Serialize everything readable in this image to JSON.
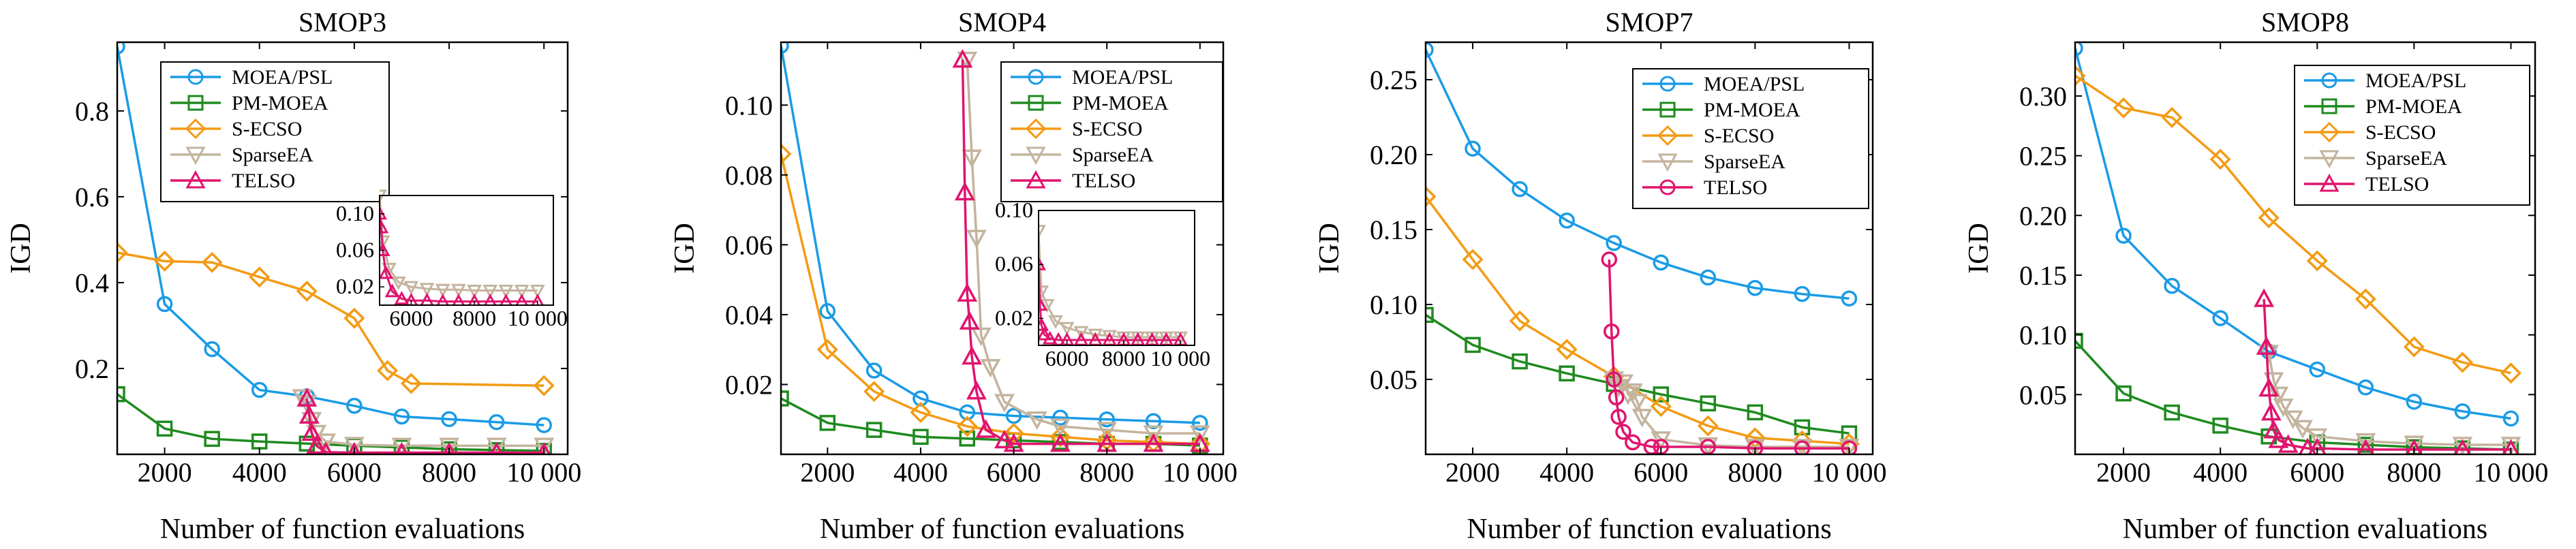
{
  "series_style": [
    {
      "name": "MOEA/PSL",
      "color": "#1a9be6",
      "marker": "circle"
    },
    {
      "name": "PM-MOEA",
      "color": "#1f8a1f",
      "marker": "square"
    },
    {
      "name": "S-ECSO",
      "color": "#f39b14",
      "marker": "diamond"
    },
    {
      "name": "SparseEA",
      "color": "#c4b49e",
      "marker": "triangle-down"
    },
    {
      "name": "TELSO",
      "color": "#e0146e",
      "marker": "triangle-up"
    }
  ],
  "chart_data": [
    {
      "type": "line",
      "title": "SMOP3",
      "xlabel": "Number of function evaluations",
      "ylabel": "IGD",
      "xlim": [
        1000,
        10500
      ],
      "ylim": [
        0,
        0.96
      ],
      "xticks": [
        2000,
        4000,
        6000,
        8000,
        10000
      ],
      "xtick_labels": [
        "2000",
        "4000",
        "6000",
        "8000",
        "10 000"
      ],
      "yticks": [
        0.2,
        0.4,
        0.6,
        0.8
      ],
      "ytick_labels": [
        "0.2",
        "0.4",
        "0.6",
        "0.8"
      ],
      "legend": {
        "position": "top-center",
        "telso_marker": "triangle-up"
      },
      "series": [
        {
          "name": "MOEA/PSL",
          "x": [
            1000,
            2000,
            3000,
            4000,
            5000,
            6000,
            7000,
            8000,
            9000,
            10000
          ],
          "y": [
            0.95,
            0.35,
            0.245,
            0.15,
            0.135,
            0.113,
            0.088,
            0.082,
            0.075,
            0.068
          ]
        },
        {
          "name": "PM-MOEA",
          "x": [
            1000,
            2000,
            3000,
            4000,
            5000,
            6000,
            7000,
            8000,
            9000,
            10000
          ],
          "y": [
            0.14,
            0.06,
            0.036,
            0.03,
            0.025,
            0.02,
            0.016,
            0.012,
            0.01,
            0.008
          ]
        },
        {
          "name": "S-ECSO",
          "x": [
            1000,
            2000,
            3000,
            4000,
            5000,
            6000,
            6700,
            7200,
            10000
          ],
          "y": [
            0.47,
            0.45,
            0.447,
            0.413,
            0.38,
            0.317,
            0.195,
            0.165,
            0.16
          ]
        },
        {
          "name": "SparseEA",
          "x": [
            4900,
            5000,
            5100,
            5200,
            5400,
            6000,
            7000,
            8000,
            9000,
            10000
          ],
          "y": [
            0.133,
            0.12,
            0.08,
            0.05,
            0.03,
            0.022,
            0.02,
            0.02,
            0.02,
            0.02
          ]
        },
        {
          "name": "TELSO",
          "x": [
            5000,
            5050,
            5100,
            5200,
            5400,
            6000,
            7000,
            8000,
            9000,
            10000
          ],
          "y": [
            0.13,
            0.09,
            0.05,
            0.02,
            0.005,
            0.004,
            0.004,
            0.004,
            0.004,
            0.004
          ]
        }
      ],
      "inset": {
        "xlim": [
          5000,
          10500
        ],
        "ylim": [
          0,
          0.12
        ],
        "xticks": [
          6000,
          8000,
          10000
        ],
        "xtick_labels": [
          "6000",
          "8000",
          "10 000"
        ],
        "yticks": [
          0.02,
          0.06,
          0.1
        ],
        "ytick_labels": [
          "0.02",
          "0.06",
          "0.10"
        ],
        "series": [
          {
            "name": "SparseEA",
            "x": [
              5000,
              5100,
              5300,
              5600,
              6000,
              6500,
              7000,
              7500,
              8000,
              8500,
              9000,
              9500,
              10000
            ],
            "y": [
              0.12,
              0.07,
              0.04,
              0.025,
              0.02,
              0.018,
              0.017,
              0.017,
              0.016,
              0.016,
              0.016,
              0.016,
              0.016
            ]
          },
          {
            "name": "TELSO",
            "x": [
              5000,
              5050,
              5100,
              5200,
              5400,
              5700,
              6000,
              6500,
              7000,
              7500,
              8000,
              8500,
              9000,
              9500,
              10000
            ],
            "y": [
              0.1,
              0.085,
              0.06,
              0.035,
              0.015,
              0.007,
              0.005,
              0.005,
              0.004,
              0.004,
              0.004,
              0.004,
              0.004,
              0.004,
              0.004
            ]
          }
        ]
      }
    },
    {
      "type": "line",
      "title": "SMOP4",
      "xlabel": "Number of function evaluations",
      "ylabel": "IGD",
      "xlim": [
        1000,
        10500
      ],
      "ylim": [
        0,
        0.118
      ],
      "xticks": [
        2000,
        4000,
        6000,
        8000,
        10000
      ],
      "xtick_labels": [
        "2000",
        "4000",
        "6000",
        "8000",
        "10 000"
      ],
      "yticks": [
        0.02,
        0.04,
        0.06,
        0.08,
        0.1
      ],
      "ytick_labels": [
        "0.02",
        "0.04",
        "0.06",
        "0.08",
        "0.10"
      ],
      "legend": {
        "position": "top-right",
        "telso_marker": "triangle-up"
      },
      "series": [
        {
          "name": "MOEA/PSL",
          "x": [
            1000,
            2000,
            3000,
            4000,
            5000,
            6000,
            7000,
            8000,
            9000,
            10000
          ],
          "y": [
            0.117,
            0.041,
            0.024,
            0.016,
            0.012,
            0.011,
            0.0105,
            0.01,
            0.0095,
            0.009
          ]
        },
        {
          "name": "PM-MOEA",
          "x": [
            1000,
            2000,
            3000,
            4000,
            5000,
            6000,
            7000,
            8000,
            9000,
            10000
          ],
          "y": [
            0.016,
            0.009,
            0.007,
            0.005,
            0.0045,
            0.004,
            0.0035,
            0.003,
            0.003,
            0.0025
          ]
        },
        {
          "name": "S-ECSO",
          "x": [
            1000,
            2000,
            3000,
            4000,
            5000,
            6000,
            7000,
            8000,
            9000,
            10000
          ],
          "y": [
            0.086,
            0.03,
            0.018,
            0.012,
            0.008,
            0.006,
            0.005,
            0.004,
            0.0035,
            0.003
          ]
        },
        {
          "name": "SparseEA",
          "x": [
            5000,
            5100,
            5200,
            5300,
            5500,
            5800,
            6500,
            7000,
            8000,
            9000,
            10000
          ],
          "y": [
            0.113,
            0.085,
            0.062,
            0.034,
            0.025,
            0.015,
            0.01,
            0.008,
            0.007,
            0.006,
            0.006
          ]
        },
        {
          "name": "TELSO",
          "x": [
            4900,
            4950,
            5000,
            5050,
            5100,
            5200,
            5400,
            5800,
            6000,
            7000,
            8000,
            9000,
            10000
          ],
          "y": [
            0.113,
            0.075,
            0.046,
            0.038,
            0.028,
            0.018,
            0.007,
            0.004,
            0.003,
            0.003,
            0.003,
            0.003,
            0.003
          ]
        }
      ],
      "inset": {
        "xlim": [
          5000,
          10500
        ],
        "ylim": [
          0,
          0.1
        ],
        "xticks": [
          6000,
          8000,
          10000
        ],
        "xtick_labels": [
          "6000",
          "8000",
          "10 000"
        ],
        "yticks": [
          0.02,
          0.06,
          0.1
        ],
        "ytick_labels": [
          "0.02",
          "0.06",
          "0.10"
        ],
        "series": [
          {
            "name": "SparseEA",
            "x": [
              5000,
              5100,
              5300,
              5600,
              6000,
              6500,
              7000,
              7500,
              8000,
              8500,
              9000,
              9500,
              10000
            ],
            "y": [
              0.085,
              0.04,
              0.03,
              0.018,
              0.013,
              0.01,
              0.008,
              0.007,
              0.006,
              0.006,
              0.006,
              0.006,
              0.006
            ]
          },
          {
            "name": "TELSO",
            "x": [
              5000,
              5050,
              5100,
              5200,
              5400,
              5700,
              6000,
              6500,
              7000,
              7500,
              8000,
              8500,
              9000,
              9500,
              10000
            ],
            "y": [
              0.06,
              0.03,
              0.015,
              0.008,
              0.005,
              0.004,
              0.004,
              0.004,
              0.004,
              0.004,
              0.004,
              0.004,
              0.004,
              0.004,
              0.004
            ]
          }
        ]
      }
    },
    {
      "type": "line",
      "title": "SMOP7",
      "xlabel": "Number of function evaluations",
      "ylabel": "IGD",
      "xlim": [
        1000,
        10500
      ],
      "ylim": [
        0,
        0.275
      ],
      "xticks": [
        2000,
        4000,
        6000,
        8000,
        10000
      ],
      "xtick_labels": [
        "2000",
        "4000",
        "6000",
        "8000",
        "10 000"
      ],
      "yticks": [
        0.05,
        0.1,
        0.15,
        0.2,
        0.25
      ],
      "ytick_labels": [
        "0.05",
        "0.10",
        "0.15",
        "0.20",
        "0.25"
      ],
      "legend": {
        "position": "top-right",
        "telso_marker": "circle"
      },
      "series": [
        {
          "name": "MOEA/PSL",
          "x": [
            1000,
            2000,
            3000,
            4000,
            5000,
            6000,
            7000,
            8000,
            9000,
            10000
          ],
          "y": [
            0.27,
            0.204,
            0.177,
            0.156,
            0.141,
            0.128,
            0.118,
            0.111,
            0.107,
            0.104
          ]
        },
        {
          "name": "PM-MOEA",
          "x": [
            1000,
            2000,
            3000,
            4000,
            5000,
            6000,
            7000,
            8000,
            9000,
            10000
          ],
          "y": [
            0.093,
            0.073,
            0.062,
            0.054,
            0.047,
            0.04,
            0.034,
            0.028,
            0.018,
            0.014
          ]
        },
        {
          "name": "S-ECSO",
          "x": [
            1000,
            2000,
            3000,
            4000,
            5000,
            6000,
            7000,
            8000,
            9000,
            10000
          ],
          "y": [
            0.172,
            0.13,
            0.089,
            0.07,
            0.052,
            0.032,
            0.019,
            0.011,
            0.009,
            0.007
          ]
        },
        {
          "name": "SparseEA",
          "x": [
            5000,
            5100,
            5200,
            5300,
            5400,
            5500,
            5600,
            6000,
            7000,
            8000,
            9000,
            10000
          ],
          "y": [
            0.05,
            0.045,
            0.048,
            0.04,
            0.042,
            0.035,
            0.025,
            0.01,
            0.006,
            0.005,
            0.005,
            0.005
          ]
        },
        {
          "name": "TELSO",
          "x": [
            4900,
            4950,
            5000,
            5050,
            5100,
            5200,
            5400,
            5800,
            6000,
            7000,
            8000,
            9000,
            10000
          ],
          "y": [
            0.13,
            0.082,
            0.05,
            0.038,
            0.025,
            0.015,
            0.008,
            0.005,
            0.005,
            0.005,
            0.004,
            0.004,
            0.004
          ]
        }
      ]
    },
    {
      "type": "line",
      "title": "SMOP8",
      "xlabel": "Number of function evaluations",
      "ylabel": "IGD",
      "xlim": [
        1000,
        10500
      ],
      "ylim": [
        0,
        0.345
      ],
      "xticks": [
        2000,
        4000,
        6000,
        8000,
        10000
      ],
      "xtick_labels": [
        "2000",
        "4000",
        "6000",
        "8000",
        "10 000"
      ],
      "yticks": [
        0.05,
        0.1,
        0.15,
        0.2,
        0.25,
        0.3
      ],
      "ytick_labels": [
        "0.05",
        "0.10",
        "0.15",
        "0.20",
        "0.25",
        "0.30"
      ],
      "legend": {
        "position": "top-right",
        "telso_marker": "triangle-up"
      },
      "series": [
        {
          "name": "MOEA/PSL",
          "x": [
            1000,
            2000,
            3000,
            4000,
            5000,
            6000,
            7000,
            8000,
            9000,
            10000
          ],
          "y": [
            0.34,
            0.183,
            0.141,
            0.114,
            0.086,
            0.071,
            0.056,
            0.044,
            0.036,
            0.03
          ]
        },
        {
          "name": "PM-MOEA",
          "x": [
            1000,
            2000,
            3000,
            4000,
            5000,
            6000,
            7000,
            8000,
            9000,
            10000
          ],
          "y": [
            0.095,
            0.051,
            0.035,
            0.024,
            0.015,
            0.01,
            0.008,
            0.006,
            0.005,
            0.004
          ]
        },
        {
          "name": "S-ECSO",
          "x": [
            1000,
            2000,
            3000,
            4000,
            5000,
            6000,
            7000,
            8000,
            9000,
            10000
          ],
          "y": [
            0.317,
            0.29,
            0.282,
            0.247,
            0.198,
            0.162,
            0.13,
            0.09,
            0.077,
            0.068
          ]
        },
        {
          "name": "SparseEA",
          "x": [
            5000,
            5100,
            5200,
            5300,
            5500,
            5700,
            6000,
            7000,
            8000,
            9000,
            10000
          ],
          "y": [
            0.085,
            0.062,
            0.05,
            0.04,
            0.03,
            0.022,
            0.015,
            0.011,
            0.009,
            0.008,
            0.008
          ]
        },
        {
          "name": "TELSO",
          "x": [
            4900,
            4950,
            5000,
            5050,
            5100,
            5200,
            5400,
            5800,
            6000,
            7000,
            8000,
            9000,
            10000
          ],
          "y": [
            0.13,
            0.09,
            0.055,
            0.035,
            0.02,
            0.012,
            0.008,
            0.005,
            0.005,
            0.004,
            0.004,
            0.004,
            0.004
          ]
        }
      ]
    }
  ]
}
